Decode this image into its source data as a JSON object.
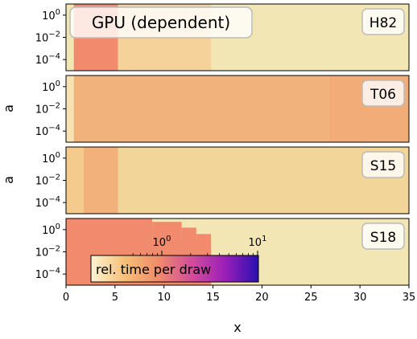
{
  "chart_data": {
    "type": "heatmap",
    "title": "GPU (dependent)",
    "xlabel": "x",
    "ylabel": "a",
    "xlim": [
      0,
      35
    ],
    "x_ticks": [
      "0",
      "5",
      "10",
      "15",
      "20",
      "25",
      "30",
      "35"
    ],
    "y_scale": "log",
    "ylim": [
      1e-05,
      10
    ],
    "y_ticks": [
      {
        "base": "10",
        "exp": "0"
      },
      {
        "base": "10",
        "exp": "−2"
      },
      {
        "base": "10",
        "exp": "−4"
      }
    ],
    "colorbar": {
      "label": "rel. time per draw",
      "scale": "log",
      "range": [
        1,
        10
      ],
      "ticks": [
        {
          "base": "10",
          "exp": "0"
        },
        {
          "base": "10",
          "exp": "1"
        }
      ],
      "colors": [
        "#fcf3d3",
        "#f7c078",
        "#f08c6a",
        "#d24e9a",
        "#9b1fb8",
        "#2a0fb0"
      ]
    },
    "panels": [
      {
        "label": "H82",
        "background": "#f2e6b5",
        "regions": [
          {
            "x0": 0.8,
            "x1": 14.8,
            "a0": 1e-05,
            "a1": 10,
            "color": "#f5d29a"
          },
          {
            "x0": 0.8,
            "x1": 5.3,
            "a0": 1e-05,
            "a1": 10,
            "color": "#f28b6d"
          }
        ]
      },
      {
        "label": "T06",
        "background": "#f7e2b5",
        "regions": [
          {
            "x0": 0.8,
            "x1": 26.8,
            "a0": 1e-05,
            "a1": 10,
            "color": "#f2b27c"
          },
          {
            "x0": 26.8,
            "x1": 35,
            "a0": 1e-05,
            "a1": 10,
            "color": "#f1ac77"
          }
        ]
      },
      {
        "label": "S15",
        "background": "#f2d599",
        "regions": [
          {
            "x0": 0.0,
            "x1": 1.8,
            "a0": 1e-05,
            "a1": 10,
            "color": "#f4cb8c"
          },
          {
            "x0": 1.8,
            "x1": 5.3,
            "a0": 1e-05,
            "a1": 10,
            "color": "#f2b07b"
          }
        ]
      },
      {
        "label": "S18",
        "background": "#f2e6b5",
        "regions": [
          {
            "x0": 0.0,
            "x1": 8.8,
            "a0": 1e-05,
            "a1": 10,
            "color": "#f28b6d"
          },
          {
            "x0": 8.8,
            "x1": 14.8,
            "a0": 1e-05,
            "a1": 0.08,
            "color": "#f28b6d"
          },
          {
            "x0": 8.8,
            "x1": 11.8,
            "a0": 1e-05,
            "a1": 5,
            "color": "#f28b6d"
          },
          {
            "x0": 11.8,
            "x1": 13.3,
            "a0": 1e-05,
            "a1": 1.5,
            "color": "#f28b6d"
          },
          {
            "x0": 13.3,
            "x1": 14.8,
            "a0": 1e-05,
            "a1": 0.4,
            "color": "#f28b6d"
          }
        ]
      }
    ]
  }
}
